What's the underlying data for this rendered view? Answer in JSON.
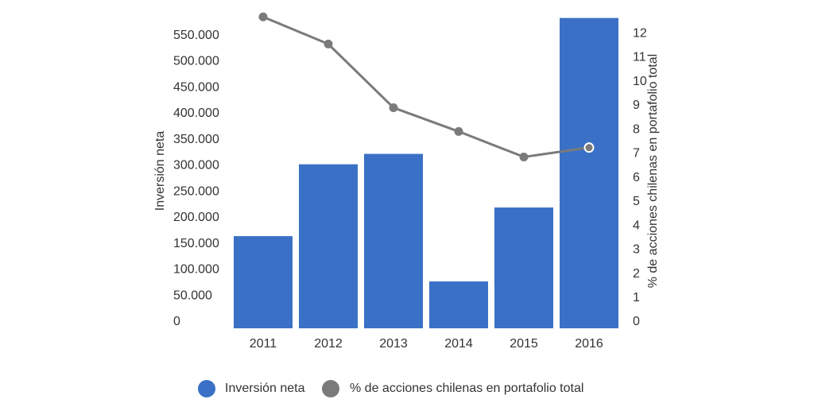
{
  "chart_data": {
    "type": "bar_line",
    "categories": [
      "2011",
      "2012",
      "2013",
      "2014",
      "2015",
      "2016"
    ],
    "series": [
      {
        "name": "Inversión neta",
        "color": "#3a71c6",
        "values": [
          177000,
          315000,
          335000,
          90000,
          232000,
          596000
        ]
      },
      {
        "name": "% de acciones chilenas en portafolio total",
        "color": "#7a7a7a",
        "axis": "y2",
        "values": [
          12.96,
          11.83,
          9.18,
          8.19,
          7.13,
          7.52
        ]
      }
    ],
    "ylabel": "Inversión neta",
    "y2label": "% de acciones chilenas en portafolio total",
    "ylim": [
      0,
      600000
    ],
    "yticks": [
      0,
      {
        "value": 50000,
        "label": "50.000"
      },
      {
        "value": 100000,
        "label": "100.000"
      },
      {
        "value": 150000,
        "label": "150.000"
      },
      {
        "value": 200000,
        "label": "200.000"
      },
      {
        "value": 250000,
        "label": "250.000"
      },
      {
        "value": 300000,
        "label": "300.000"
      },
      {
        "value": 350000,
        "label": "350.000"
      },
      {
        "value": 400000,
        "label": "400.000"
      },
      {
        "value": 450000,
        "label": "450.000"
      },
      {
        "value": 500000,
        "label": "500.000"
      },
      {
        "value": 550000,
        "label": "550.000"
      }
    ],
    "y2lim": [
      0,
      13
    ],
    "y2ticks": [
      0,
      1,
      2,
      3,
      4,
      5,
      6,
      7,
      8,
      9,
      10,
      11,
      12
    ]
  }
}
